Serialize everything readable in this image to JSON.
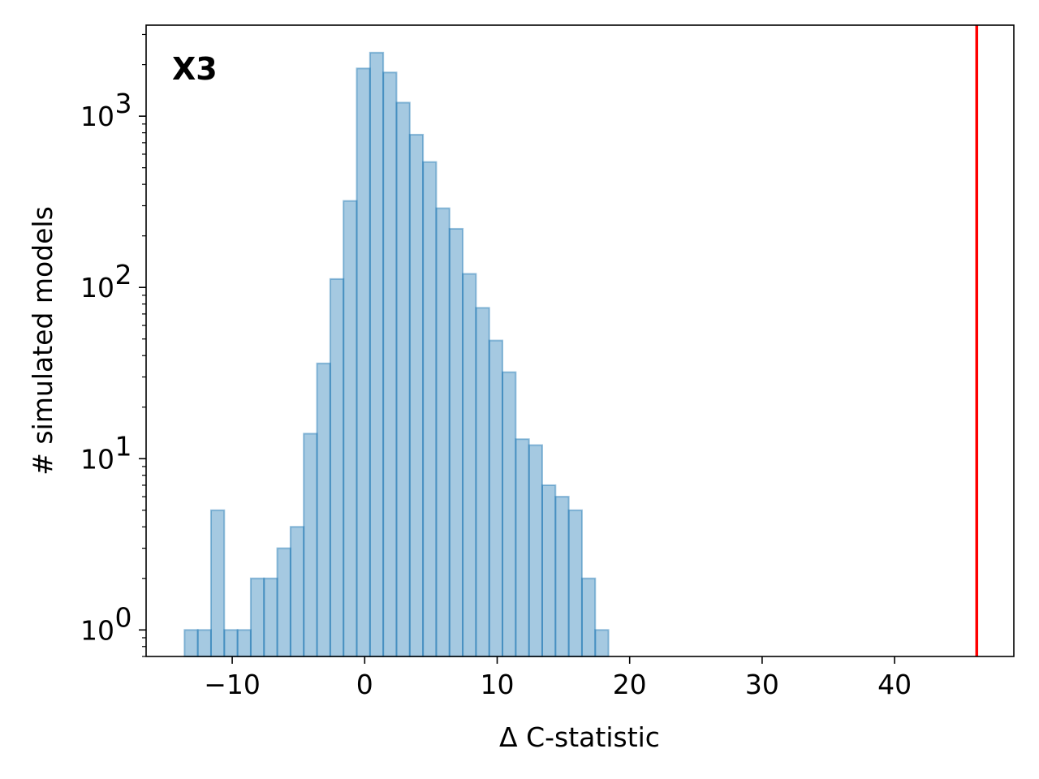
{
  "chart_data": {
    "type": "bar",
    "subtype": "histogram",
    "panel_label": "X3",
    "xlabel": "Δ C-statistic",
    "ylabel": "# simulated models",
    "xlim": [
      -16.5,
      49
    ],
    "ylim": [
      0.7,
      3400
    ],
    "yscale": "log",
    "xticks": [
      -10,
      0,
      10,
      20,
      30,
      40
    ],
    "xtick_labels": [
      "−10",
      "0",
      "10",
      "20",
      "30",
      "40"
    ],
    "yticks": [
      {
        "value": 1,
        "base": "10",
        "exp": "0"
      },
      {
        "value": 10,
        "base": "10",
        "exp": "1"
      },
      {
        "value": 100,
        "base": "10",
        "exp": "2"
      },
      {
        "value": 1000,
        "base": "10",
        "exp": "3"
      }
    ],
    "bin_width": 1.0,
    "bins": [
      {
        "x0": -13.6,
        "count": 1
      },
      {
        "x0": -12.6,
        "count": 1
      },
      {
        "x0": -11.6,
        "count": 5
      },
      {
        "x0": -10.6,
        "count": 1
      },
      {
        "x0": -9.6,
        "count": 1
      },
      {
        "x0": -8.6,
        "count": 2
      },
      {
        "x0": -7.6,
        "count": 2
      },
      {
        "x0": -6.6,
        "count": 3
      },
      {
        "x0": -5.6,
        "count": 4
      },
      {
        "x0": -4.6,
        "count": 14
      },
      {
        "x0": -3.6,
        "count": 36
      },
      {
        "x0": -2.6,
        "count": 112
      },
      {
        "x0": -1.6,
        "count": 320
      },
      {
        "x0": -0.6,
        "count": 1900
      },
      {
        "x0": 0.4,
        "count": 2350
      },
      {
        "x0": 1.4,
        "count": 1800
      },
      {
        "x0": 2.4,
        "count": 1200
      },
      {
        "x0": 3.4,
        "count": 780
      },
      {
        "x0": 4.4,
        "count": 540
      },
      {
        "x0": 5.4,
        "count": 290
      },
      {
        "x0": 6.4,
        "count": 220
      },
      {
        "x0": 7.4,
        "count": 120
      },
      {
        "x0": 8.4,
        "count": 76
      },
      {
        "x0": 9.4,
        "count": 49
      },
      {
        "x0": 10.4,
        "count": 32
      },
      {
        "x0": 11.4,
        "count": 13
      },
      {
        "x0": 12.4,
        "count": 12
      },
      {
        "x0": 13.4,
        "count": 7
      },
      {
        "x0": 14.4,
        "count": 6
      },
      {
        "x0": 15.4,
        "count": 5
      },
      {
        "x0": 16.4,
        "count": 2
      },
      {
        "x0": 17.4,
        "count": 1
      }
    ],
    "vline": {
      "x": 46.2,
      "color": "#ff0000"
    },
    "bar_color": "#1f77b4",
    "bar_alpha": 0.4,
    "grid": false,
    "legend": "none"
  }
}
